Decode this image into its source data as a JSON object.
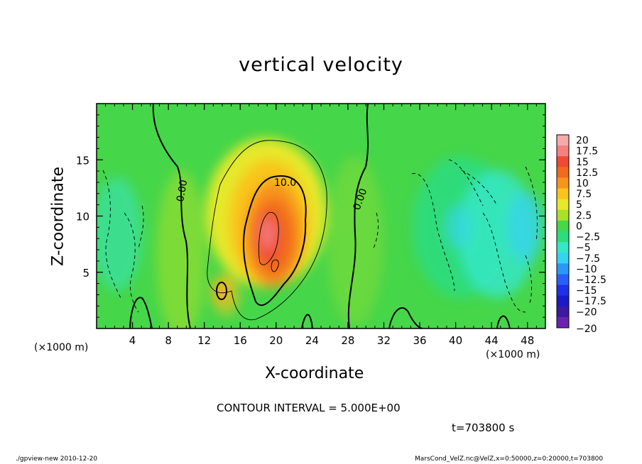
{
  "chart_data": {
    "type": "heatmap",
    "title": "vertical velocity",
    "xlabel": "X-coordinate",
    "ylabel": "Z-coordinate",
    "x_unit_label": "(×1000 m)",
    "xlim": [
      0,
      50
    ],
    "ylim": [
      0,
      20
    ],
    "x_ticks": [
      4,
      8,
      12,
      16,
      20,
      24,
      28,
      32,
      36,
      40,
      44,
      48
    ],
    "y_ticks": [
      5,
      10,
      15
    ],
    "colorbar": {
      "levels": [
        "20",
        "17.5",
        "15",
        "12.5",
        "10",
        "7.5",
        "5",
        "2.5",
        "0",
        "−2.5",
        "−5",
        "−7.5",
        "−10",
        "−12.5",
        "−15",
        "−17.5",
        "−20"
      ],
      "colors": [
        "#f7aaaa",
        "#f58080",
        "#ef4a35",
        "#f26a1c",
        "#f7941d",
        "#f9c41b",
        "#e6e82a",
        "#a9e02a",
        "#46d64a",
        "#2ddc7e",
        "#37e6c6",
        "#35d3f2",
        "#2b98f7",
        "#2860f7",
        "#1e30e8",
        "#1a1ac8",
        "#3a1aa0",
        "#6c22b0"
      ]
    },
    "contour_labels": [
      "0.00",
      "10.0",
      "0.00"
    ],
    "contour_interval_text": "CONTOUR INTERVAL = 5.000E+00",
    "time_text": "t=703800 s"
  },
  "footer": {
    "left": "./gpview-new  2010-12-20",
    "right": "MarsCond_VelZ.nc@VelZ,x=0:50000,z=0:20000,t=703800"
  }
}
